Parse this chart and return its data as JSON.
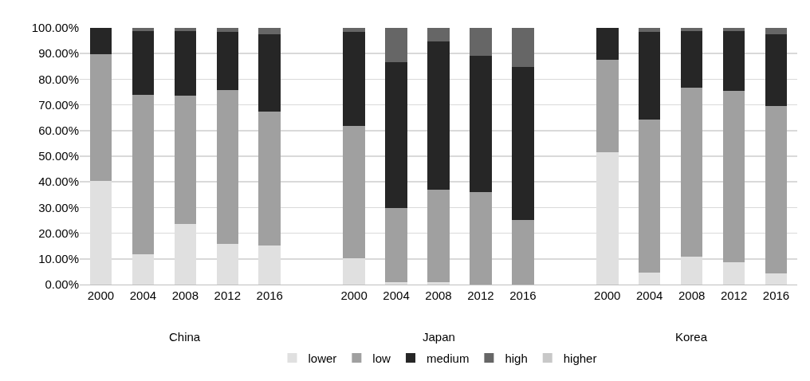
{
  "chart_data": {
    "type": "bar",
    "stacked": true,
    "categories": [
      "2000",
      "2004",
      "2008",
      "2012",
      "2016",
      null,
      "2000",
      "2004",
      "2008",
      "2012",
      "2016",
      null,
      "2000",
      "2004",
      "2008",
      "2012",
      "2016"
    ],
    "series": [
      {
        "name": "lower",
        "color": "#e0e0e0",
        "values": [
          40.5,
          11.8,
          23.6,
          15.8,
          15.3,
          null,
          10.3,
          1,
          1,
          0,
          0,
          null,
          51.6,
          4.7,
          10.8,
          8.8,
          4.4
        ]
      },
      {
        "name": "low",
        "color": "#a0a0a0",
        "values": [
          49.3,
          62.2,
          50,
          60,
          52.1,
          null,
          51.6,
          28.9,
          36.1,
          35.9,
          25.2,
          null,
          36.1,
          59.7,
          66,
          66.8,
          65.2
        ]
      },
      {
        "name": "medium",
        "color": "#262626",
        "values": [
          10.2,
          24.8,
          25.2,
          22.8,
          30.2,
          null,
          36.7,
          56.9,
          57.6,
          53.1,
          59.6,
          null,
          12.3,
          34.2,
          22,
          23.2,
          28
        ]
      },
      {
        "name": "high",
        "color": "#666666",
        "values": [
          0,
          1.2,
          1.2,
          1.4,
          2.4,
          null,
          1.4,
          13.2,
          5.3,
          11,
          15.2,
          null,
          0,
          1.4,
          1.2,
          1.2,
          2.4
        ]
      },
      {
        "name": "higher",
        "color": "#c8c8c8",
        "values": [
          0,
          0,
          0,
          0,
          0,
          null,
          0,
          0,
          0,
          0,
          0,
          null,
          0,
          0,
          0,
          0,
          0
        ]
      }
    ],
    "ylim": [
      0,
      100
    ],
    "yticks": [
      {
        "value": 0,
        "label": "0.00%"
      },
      {
        "value": 10,
        "label": "10.00%"
      },
      {
        "value": 20,
        "label": "20.00%"
      },
      {
        "value": 30,
        "label": "30.00%"
      },
      {
        "value": 40,
        "label": "40.00%"
      },
      {
        "value": 50,
        "label": "50.00%"
      },
      {
        "value": 60,
        "label": "60.00%"
      },
      {
        "value": 70,
        "label": "70.00%"
      },
      {
        "value": 80,
        "label": "80.00%"
      },
      {
        "value": 90,
        "label": "90.00%"
      },
      {
        "value": 100,
        "label": "100.00%"
      }
    ],
    "annotations": [
      "China",
      "Japan",
      "Korea"
    ],
    "grid": "y",
    "legend": "bottom"
  }
}
